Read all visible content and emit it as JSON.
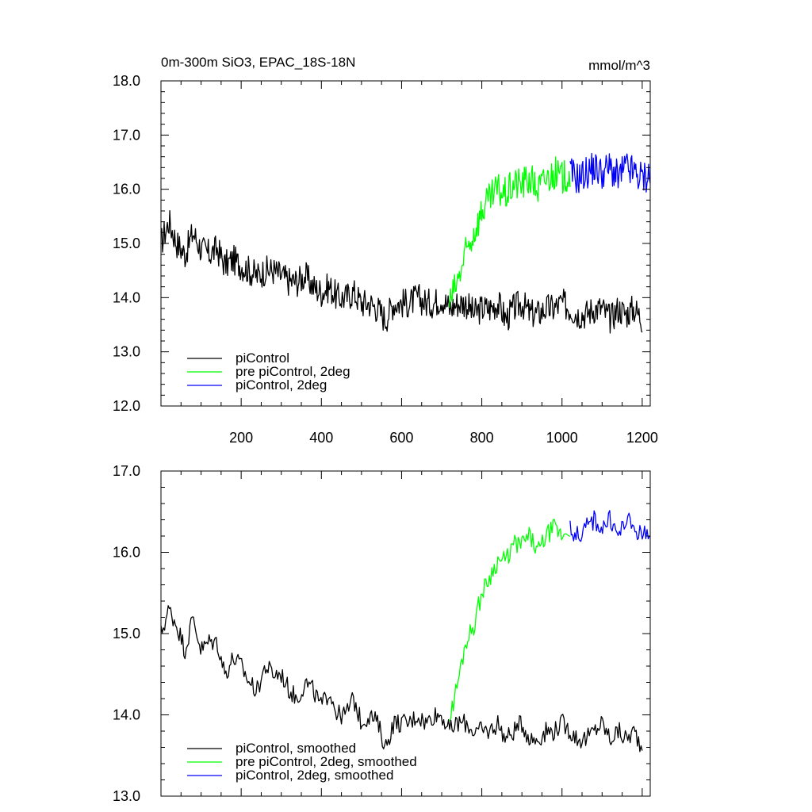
{
  "chart_data": [
    {
      "type": "line",
      "title": "0m-300m SiO3, EPAC_18S-18N",
      "units": "mmol/m^3",
      "xlim": [
        0,
        1220
      ],
      "ylim": [
        12.0,
        18.0
      ],
      "x_ticks": [
        200,
        400,
        600,
        800,
        1000,
        1200
      ],
      "y_ticks": [
        12.0,
        13.0,
        14.0,
        15.0,
        16.0,
        17.0,
        18.0
      ],
      "y_tick_labels": [
        "12.0",
        "13.0",
        "14.0",
        "15.0",
        "16.0",
        "17.0",
        "18.0"
      ],
      "series": [
        {
          "name": "piControl",
          "color": "#000000",
          "x": [
            0,
            20,
            40,
            60,
            80,
            100,
            120,
            140,
            160,
            180,
            200,
            220,
            240,
            260,
            280,
            300,
            320,
            340,
            360,
            380,
            400,
            420,
            440,
            460,
            480,
            500,
            520,
            540,
            560,
            580,
            600,
            620,
            640,
            660,
            680,
            700,
            720,
            740,
            760,
            780,
            800,
            820,
            840,
            860,
            880,
            900,
            920,
            940,
            960,
            980,
            1000,
            1020,
            1040,
            1060,
            1080,
            1100,
            1120,
            1140,
            1160,
            1180,
            1200
          ],
          "values": [
            15.0,
            15.4,
            15.0,
            14.8,
            15.2,
            14.9,
            14.8,
            14.9,
            14.6,
            14.7,
            14.6,
            14.5,
            14.4,
            14.5,
            14.5,
            14.4,
            14.3,
            14.3,
            14.4,
            14.2,
            14.1,
            14.2,
            14.0,
            14.0,
            14.1,
            13.9,
            13.9,
            13.8,
            13.6,
            13.9,
            13.9,
            13.9,
            14.0,
            13.9,
            13.9,
            14.0,
            13.8,
            13.9,
            13.9,
            13.7,
            13.8,
            13.8,
            13.9,
            13.6,
            13.8,
            13.9,
            13.7,
            13.7,
            13.8,
            13.8,
            13.9,
            13.8,
            13.7,
            13.7,
            13.8,
            13.8,
            13.6,
            13.8,
            13.7,
            13.8,
            13.6
          ]
        },
        {
          "name": "pre piControl, 2deg",
          "color": "#00ff00",
          "x": [
            720,
            740,
            760,
            780,
            800,
            820,
            840,
            860,
            880,
            900,
            920,
            940,
            960,
            980,
            1000,
            1020
          ],
          "values": [
            13.9,
            14.3,
            14.8,
            15.2,
            15.6,
            15.8,
            16.0,
            15.9,
            16.1,
            16.1,
            16.2,
            16.0,
            16.2,
            16.3,
            16.2,
            16.3
          ]
        },
        {
          "name": "piControl, 2deg",
          "color": "#0000ff",
          "x": [
            1020,
            1040,
            1060,
            1080,
            1100,
            1120,
            1140,
            1160,
            1180,
            1200,
            1220
          ],
          "values": [
            16.3,
            16.2,
            16.3,
            16.4,
            16.3,
            16.4,
            16.2,
            16.4,
            16.3,
            16.2,
            16.3
          ]
        }
      ],
      "legend": {
        "position": "bottom-left",
        "entries": [
          "piControl",
          "pre piControl, 2deg",
          "piControl, 2deg"
        ]
      }
    },
    {
      "type": "line",
      "xlim": [
        0,
        1220
      ],
      "ylim": [
        13.0,
        17.0
      ],
      "y_ticks": [
        13.0,
        14.0,
        15.0,
        16.0,
        17.0
      ],
      "y_tick_labels": [
        "13.0",
        "14.0",
        "15.0",
        "16.0",
        "17.0"
      ],
      "series": [
        {
          "name": "piControl, smoothed",
          "color": "#000000",
          "x": [
            0,
            20,
            40,
            60,
            80,
            100,
            120,
            140,
            160,
            180,
            200,
            220,
            240,
            260,
            280,
            300,
            320,
            340,
            360,
            380,
            400,
            420,
            440,
            460,
            480,
            500,
            520,
            540,
            560,
            580,
            600,
            620,
            640,
            660,
            680,
            700,
            720,
            740,
            760,
            780,
            800,
            820,
            840,
            860,
            880,
            900,
            920,
            940,
            960,
            980,
            1000,
            1020,
            1040,
            1060,
            1080,
            1100,
            1120,
            1140,
            1160,
            1180,
            1200
          ],
          "values": [
            15.0,
            15.3,
            15.1,
            14.8,
            15.2,
            14.8,
            14.9,
            14.9,
            14.5,
            14.7,
            14.6,
            14.4,
            14.3,
            14.6,
            14.5,
            14.5,
            14.3,
            14.2,
            14.4,
            14.3,
            14.1,
            14.3,
            14.0,
            14.0,
            14.2,
            13.9,
            14.0,
            13.9,
            13.6,
            13.9,
            13.9,
            13.9,
            14.0,
            13.9,
            14.0,
            14.0,
            13.8,
            13.9,
            13.9,
            13.8,
            13.8,
            13.8,
            13.9,
            13.7,
            13.8,
            13.9,
            13.7,
            13.7,
            13.8,
            13.8,
            13.9,
            13.8,
            13.7,
            13.7,
            13.8,
            13.9,
            13.7,
            13.8,
            13.7,
            13.8,
            13.6
          ]
        },
        {
          "name": "pre piControl, 2deg, smoothed",
          "color": "#00ff00",
          "x": [
            720,
            740,
            760,
            780,
            800,
            820,
            840,
            860,
            880,
            900,
            920,
            940,
            960,
            980,
            1000,
            1020
          ],
          "values": [
            13.95,
            14.4,
            14.9,
            15.1,
            15.5,
            15.7,
            15.9,
            15.9,
            16.1,
            16.1,
            16.2,
            16.0,
            16.2,
            16.3,
            16.2,
            16.3
          ]
        },
        {
          "name": "piControl, 2deg, smoothed",
          "color": "#0000ff",
          "x": [
            1020,
            1040,
            1060,
            1080,
            1100,
            1120,
            1140,
            1160,
            1180,
            1200,
            1220
          ],
          "values": [
            16.3,
            16.2,
            16.3,
            16.4,
            16.3,
            16.4,
            16.2,
            16.4,
            16.3,
            16.2,
            16.3
          ]
        }
      ],
      "legend": {
        "position": "bottom-left",
        "entries": [
          "piControl, smoothed",
          "pre piControl, 2deg, smoothed",
          "piControl, 2deg, smoothed"
        ]
      }
    }
  ]
}
